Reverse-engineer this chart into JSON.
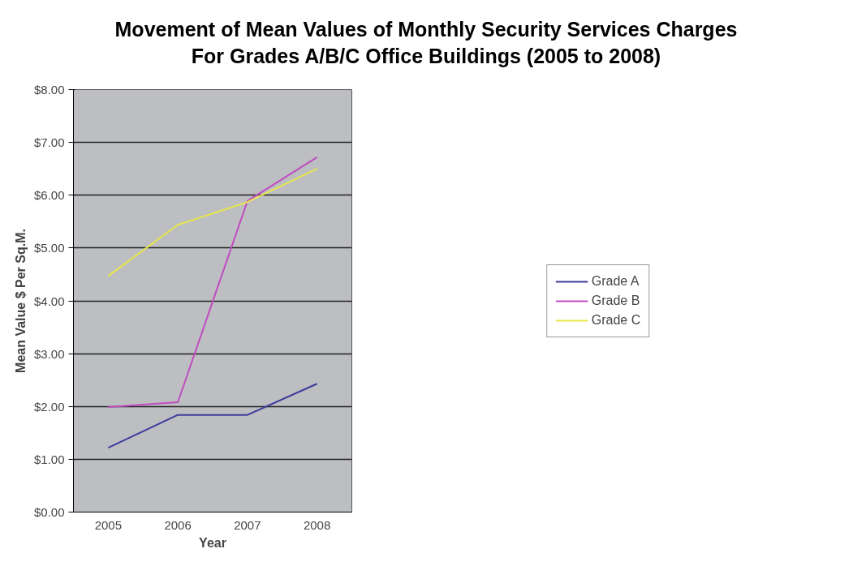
{
  "chart_data": {
    "type": "line",
    "title": "Movement of Mean Values of Monthly Security Services Charges\nFor Grades A/B/C Office Buildings (2005 to 2008)",
    "xlabel": "Year",
    "ylabel": "Mean Value $ Per Sq.M.",
    "categories": [
      "2005",
      "2006",
      "2007",
      "2008"
    ],
    "series": [
      {
        "name": "Grade A",
        "color": "#3c3c9c",
        "values": [
          1.22,
          1.84,
          1.84,
          2.43
        ]
      },
      {
        "name": "Grade B",
        "color": "#c04cc0",
        "values": [
          1.99,
          2.08,
          5.89,
          6.72
        ]
      },
      {
        "name": "Grade C",
        "color": "#e6e64c",
        "values": [
          4.47,
          5.44,
          5.87,
          6.5
        ]
      }
    ],
    "ylim": [
      0,
      8
    ],
    "yticks": [
      {
        "value": 0,
        "label": "$0.00"
      },
      {
        "value": 1,
        "label": "$1.00"
      },
      {
        "value": 2,
        "label": "$2.00"
      },
      {
        "value": 3,
        "label": "$3.00"
      },
      {
        "value": 4,
        "label": "$4.00"
      },
      {
        "value": 5,
        "label": "$5.00"
      },
      {
        "value": 6,
        "label": "$6.00"
      },
      {
        "value": 7,
        "label": "$7.00"
      },
      {
        "value": 8,
        "label": "$8.00"
      }
    ],
    "grid": "y",
    "legend": "right",
    "marker": "none",
    "line_style": "solid"
  }
}
